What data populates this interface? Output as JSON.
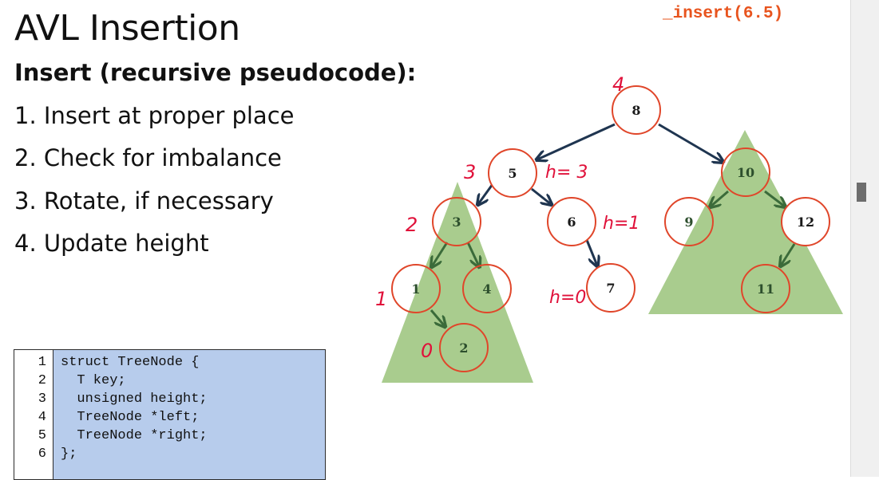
{
  "slide": {
    "title": "AVL Insertion",
    "subtitle": "Insert (recursive pseudocode):",
    "steps": [
      "1. Insert at proper place",
      "2. Check for imbalance",
      "3. Rotate, if necessary",
      "4. Update height"
    ],
    "call_label": "_insert(6.5)"
  },
  "code": {
    "line_numbers": [
      "1",
      "2",
      "3",
      "4",
      "5",
      "6"
    ],
    "lines": [
      "struct TreeNode {",
      "  T key;",
      "  unsigned height;",
      "  TreeNode *left;",
      "  TreeNode *right;",
      "};"
    ]
  },
  "tree": {
    "nodes": [
      "8",
      "5",
      "10",
      "3",
      "6",
      "9",
      "12",
      "1",
      "4",
      "7",
      "11",
      "2"
    ],
    "annotations": [
      "4",
      "3",
      "h= 3",
      "2",
      "h=1",
      "1",
      "h=0",
      "0"
    ]
  },
  "colors": {
    "node_border": "#e0462a",
    "triangle_fill": "#a9cc8e",
    "arrow_dark": "#1f3550",
    "arrow_green": "#3b6b3a",
    "handwriting": "#e0113a",
    "code_bg": "#b7ccec",
    "call_text": "#e8541e"
  }
}
